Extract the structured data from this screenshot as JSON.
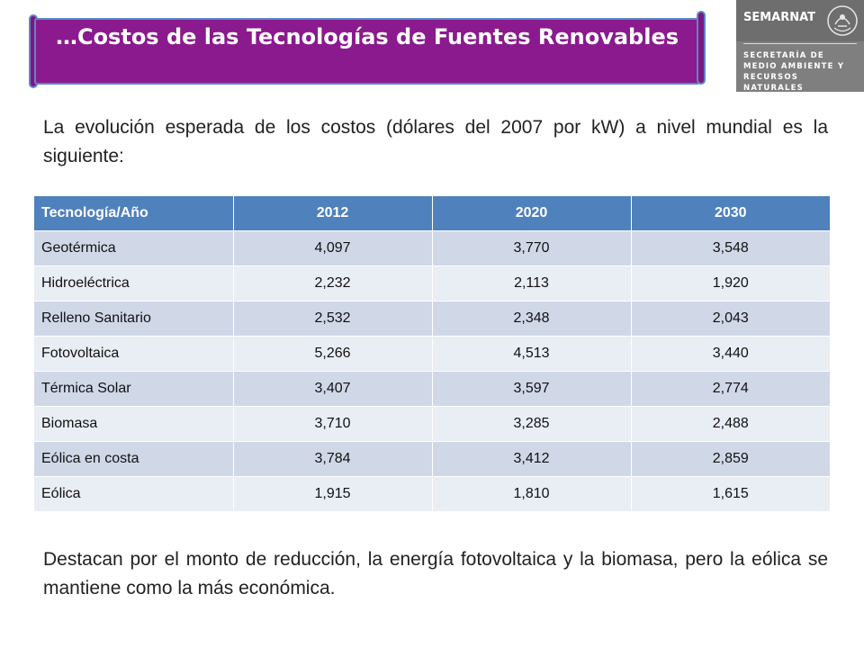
{
  "slide": {
    "title": "…Costos de las Tecnologías de Fuentes Renovables",
    "intro": "La evolución esperada de los costos (dólares del 2007 por kW) a nivel mundial es la siguiente:",
    "conclusion": "Destacan por el monto de reducción, la energía fotovoltaica y la biomasa, pero la eólica se mantiene como la más económica."
  },
  "logo": {
    "name": "SEMARNAT",
    "subtitle": "SECRETARÍA DE MEDIO AMBIENTE Y RECURSOS NATURALES",
    "seal_icon": "mexico-coat-of-arms-icon"
  },
  "colors": {
    "banner": "#8a1a8d",
    "banner_border": "#5d86c9",
    "table_header": "#4f81bd",
    "row_odd": "#d0d8e8",
    "row_even": "#e9edf4",
    "logo_bg": "#7f7f7f"
  },
  "table": {
    "headers": [
      "Tecnología/Año",
      "2012",
      "2020",
      "2030"
    ],
    "rows": [
      [
        "Geotérmica",
        "4,097",
        "3,770",
        "3,548"
      ],
      [
        "Hidroeléctrica",
        "2,232",
        "2,113",
        "1,920"
      ],
      [
        "Relleno Sanitario",
        "2,532",
        "2,348",
        "2,043"
      ],
      [
        "Fotovoltaica",
        "5,266",
        "4,513",
        "3,440"
      ],
      [
        "Térmica Solar",
        "3,407",
        "3,597",
        "2,774"
      ],
      [
        "Biomasa",
        "3,710",
        "3,285",
        "2,488"
      ],
      [
        "Eólica en costa",
        "3,784",
        "3,412",
        "2,859"
      ],
      [
        "Eólica",
        "1,915",
        "1,810",
        "1,615"
      ]
    ]
  }
}
